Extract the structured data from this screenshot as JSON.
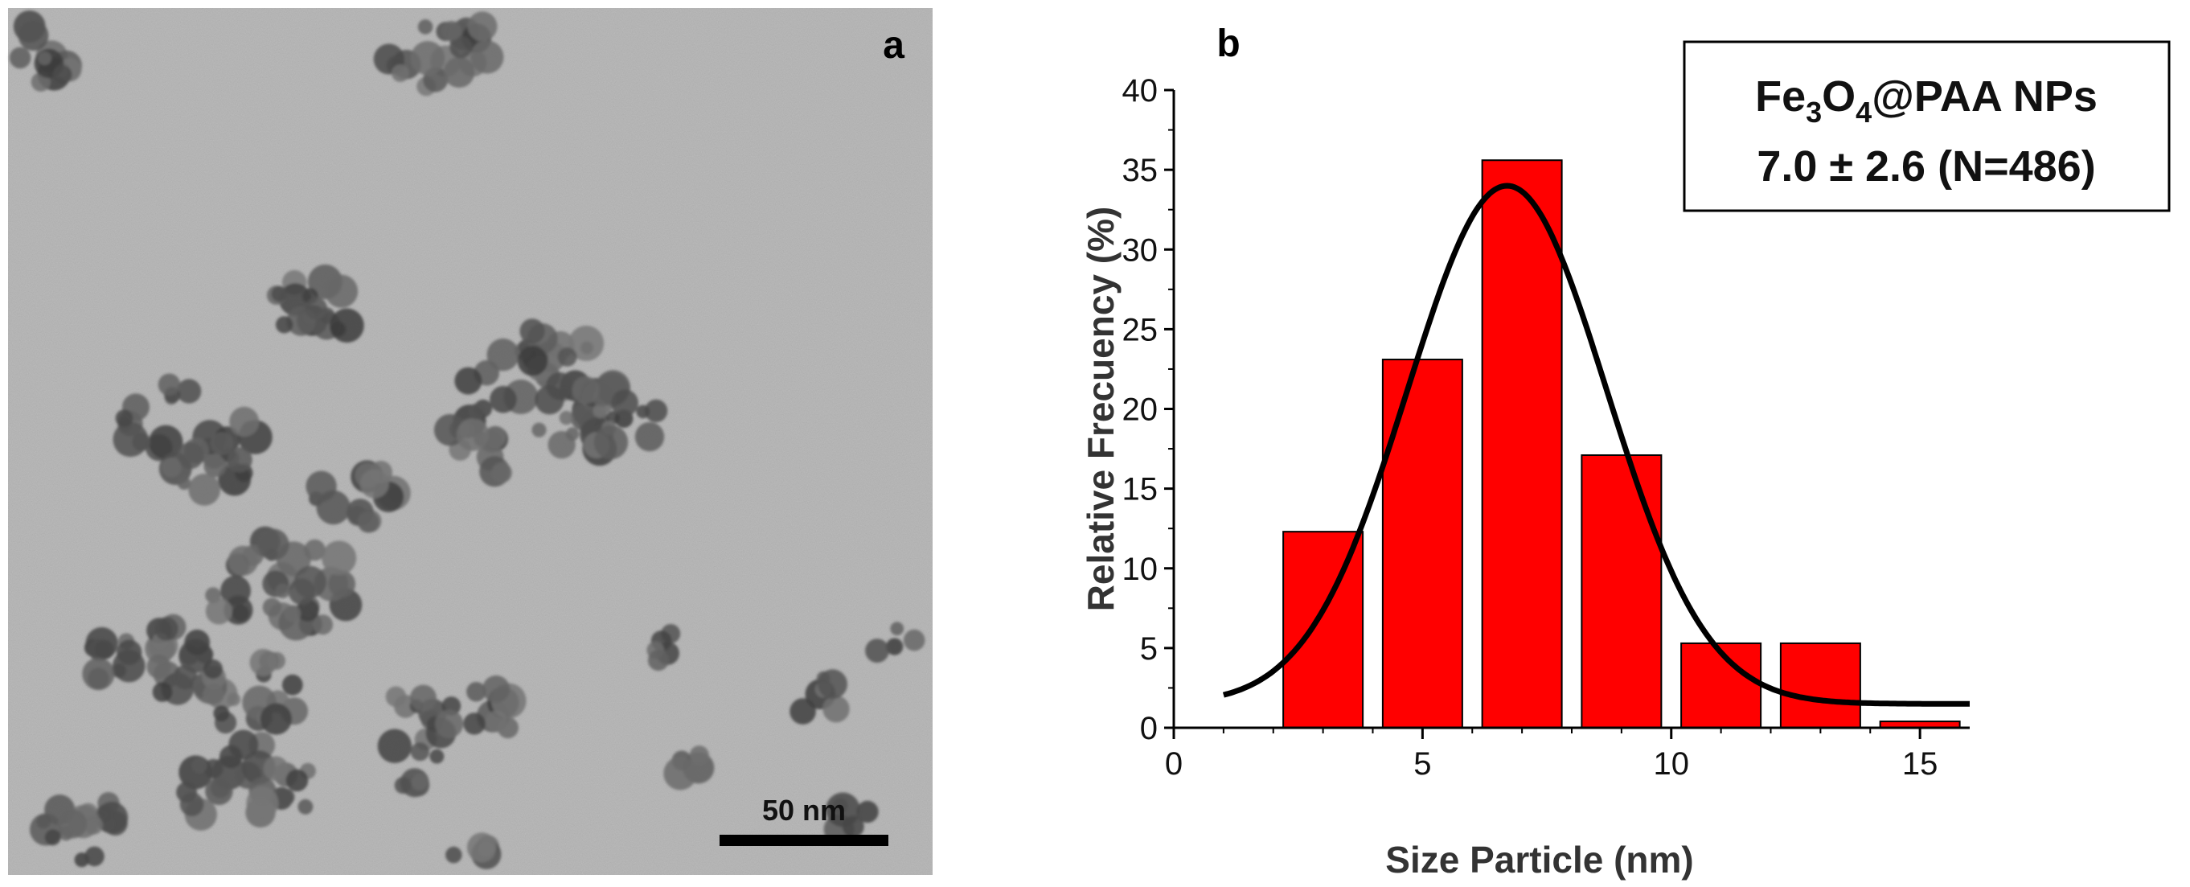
{
  "figure": {
    "panel_a": {
      "label": "a",
      "scale_bar_label": "50 nm"
    },
    "panel_b": {
      "label": "b"
    }
  },
  "chart_data": {
    "type": "bar",
    "title": "",
    "xlabel": "Size Particle (nm)",
    "ylabel": "Relative Frecuency (%)",
    "xlim": [
      0,
      16
    ],
    "ylim": [
      0,
      40
    ],
    "xticks": [
      0,
      5,
      10,
      15
    ],
    "yticks": [
      0,
      5,
      10,
      15,
      20,
      25,
      30,
      35,
      40
    ],
    "grid": false,
    "bins": [
      {
        "x_start": 2.2,
        "x_end": 3.8,
        "value": 12.3
      },
      {
        "x_start": 4.2,
        "x_end": 5.8,
        "value": 23.1
      },
      {
        "x_start": 6.2,
        "x_end": 7.8,
        "value": 35.6
      },
      {
        "x_start": 8.2,
        "x_end": 9.8,
        "value": 17.1
      },
      {
        "x_start": 10.2,
        "x_end": 11.8,
        "value": 5.3
      },
      {
        "x_start": 12.2,
        "x_end": 13.8,
        "value": 5.3
      },
      {
        "x_start": 14.2,
        "x_end": 15.8,
        "value": 0.4
      }
    ],
    "fit": {
      "type": "gaussian",
      "baseline": 1.5,
      "amplitude": 32.5,
      "center": 6.7,
      "width": 2.0,
      "x_range": [
        1,
        16
      ]
    },
    "legend": {
      "position": "top-right",
      "line1_prefix": "Fe",
      "line1_sub1": "3",
      "line1_mid": "O",
      "line1_sub2": "4",
      "line1_suffix": "@PAA NPs",
      "line2": "7.0 ± 2.6 (N=486)"
    },
    "colors": {
      "bar_fill": "#ff0000",
      "bar_stroke": "#000000",
      "fit_line": "#000000"
    }
  }
}
